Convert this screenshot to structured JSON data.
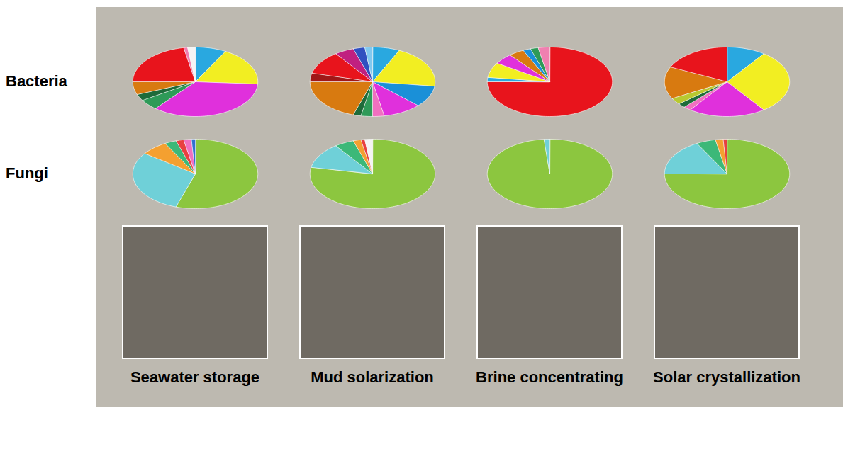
{
  "chart_data": {
    "type": "pie",
    "rows": [
      "Bacteria",
      "Fungi"
    ],
    "columns": [
      "Seawater storage",
      "Mud solarization",
      "Brine concentrating",
      "Solar crystallization"
    ],
    "panels": [
      [
        {
          "values": [
            8,
            18,
            35,
            5,
            3,
            6,
            22,
            1,
            2
          ],
          "colors": [
            "#29a8e0",
            "#f2ee22",
            "#e030dc",
            "#2e9a58",
            "#1e6b3a",
            "#d87a10",
            "#e8141c",
            "#f080b0",
            "#f4f4f4"
          ]
        },
        {
          "values": [
            7,
            20,
            10,
            10,
            3,
            3,
            2,
            20,
            4,
            11,
            5,
            3,
            2
          ],
          "colors": [
            "#29a8e0",
            "#f2ee22",
            "#1a90d8",
            "#e030dc",
            "#f070c0",
            "#2e9a58",
            "#1e6b3a",
            "#d87a10",
            "#a01818",
            "#e8141c",
            "#c02080",
            "#3050c0",
            "#80c8f0"
          ]
        },
        {
          "values": [
            75,
            2,
            7,
            5,
            4,
            2,
            2,
            3
          ],
          "colors": [
            "#e8141c",
            "#29a8e0",
            "#f2ee22",
            "#e030dc",
            "#d87a10",
            "#1a90d8",
            "#2e9a58",
            "#f080b0"
          ]
        },
        {
          "values": [
            10,
            30,
            20,
            2,
            2,
            3,
            15,
            18
          ],
          "colors": [
            "#29a8e0",
            "#f2ee22",
            "#e030dc",
            "#f070c0",
            "#1e6b3a",
            "#b8c830",
            "#d87a10",
            "#e8141c"
          ]
        }
      ],
      [
        {
          "values": [
            55,
            30,
            7,
            3,
            2,
            2,
            1
          ],
          "colors": [
            "#8cc63f",
            "#6fd0d8",
            "#f4a030",
            "#3cb878",
            "#e84040",
            "#f070c0",
            "#3070d0"
          ]
        },
        {
          "values": [
            78,
            12,
            5,
            2,
            1,
            2
          ],
          "colors": [
            "#8cc63f",
            "#6fd0d8",
            "#3cb878",
            "#f4a030",
            "#e84040",
            "#f4f4f4"
          ]
        },
        {
          "values": [
            98.5,
            1.5
          ],
          "colors": [
            "#8cc63f",
            "#6fd0d8"
          ]
        },
        {
          "values": [
            75,
            17,
            5,
            2,
            1
          ],
          "colors": [
            "#8cc63f",
            "#6fd0d8",
            "#3cb878",
            "#f4a030",
            "#e84040"
          ]
        }
      ]
    ]
  }
}
